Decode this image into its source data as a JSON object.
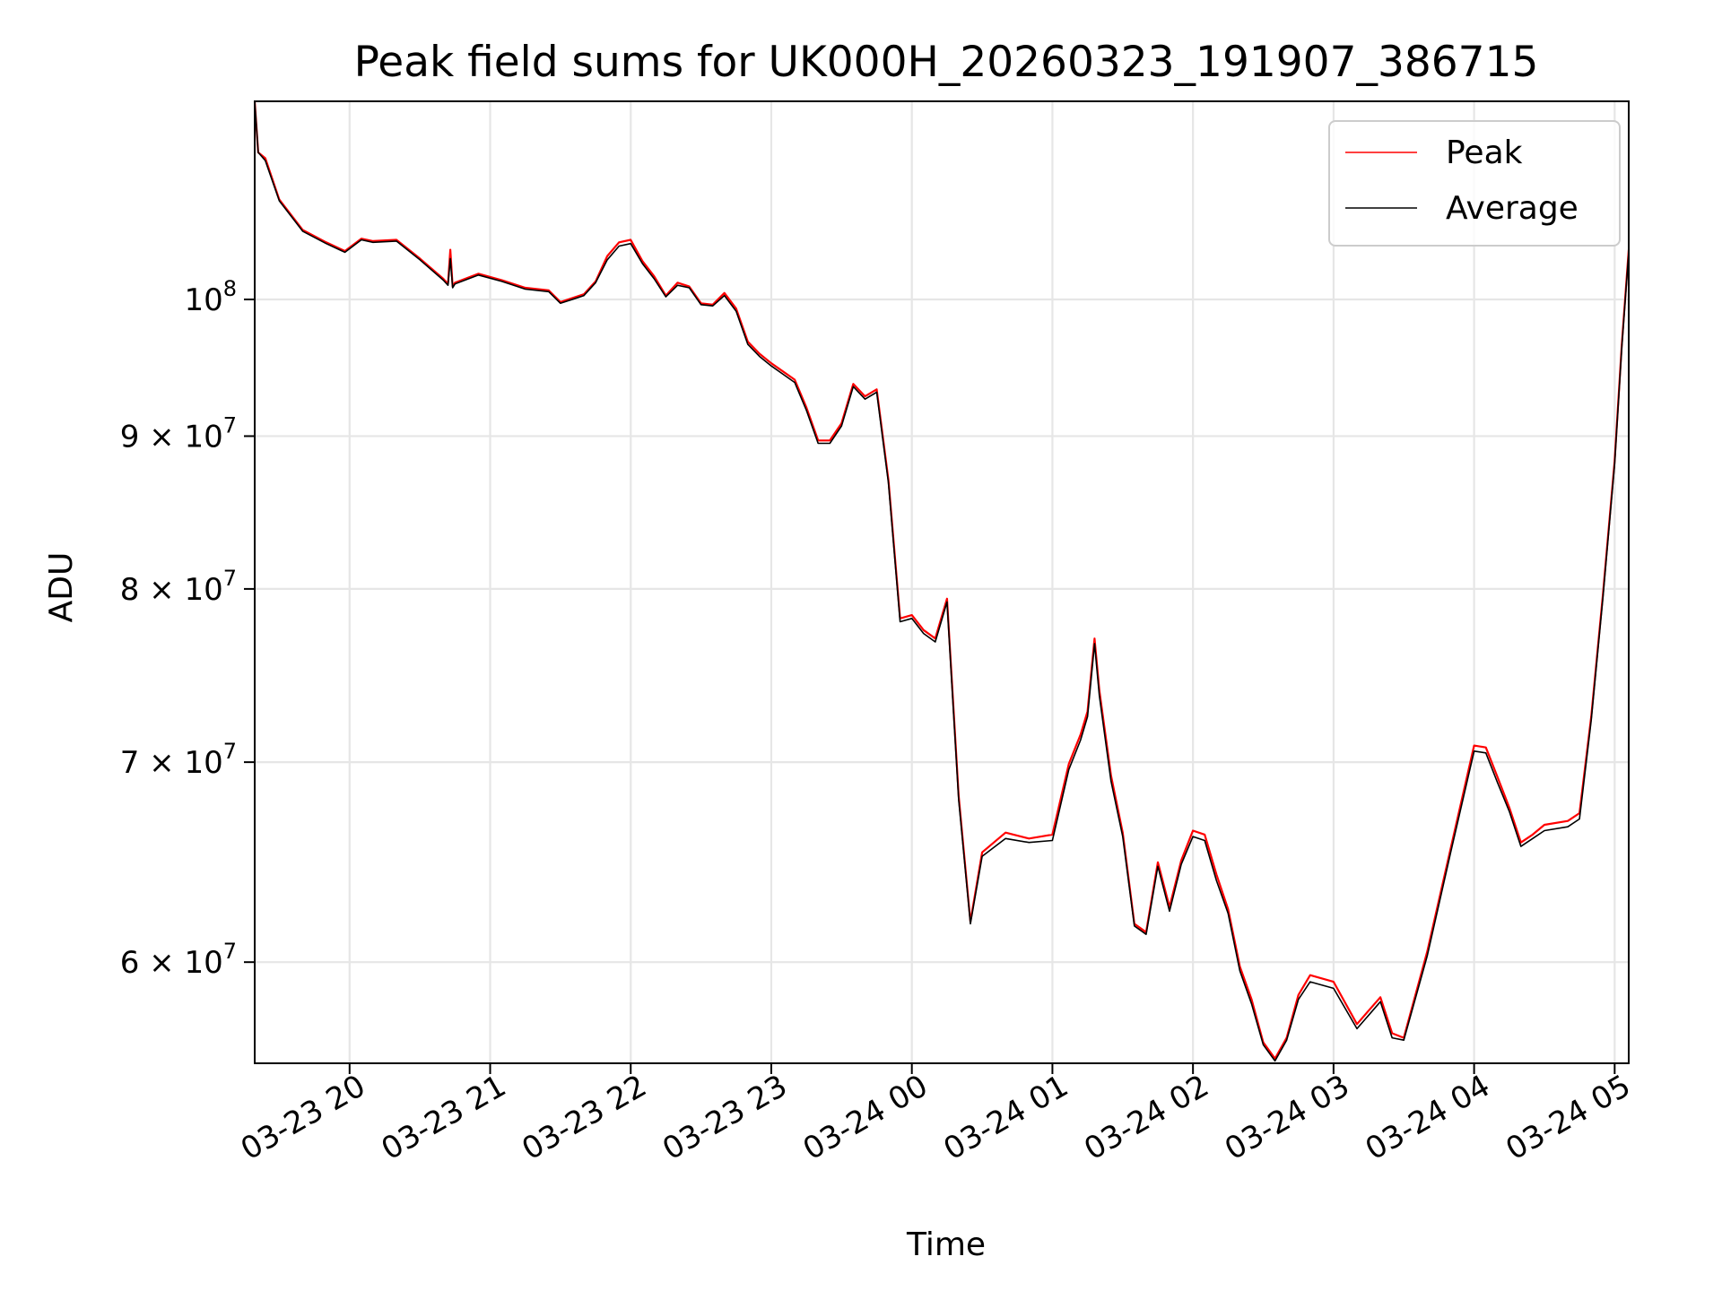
{
  "chart_data": {
    "type": "line",
    "title": "Peak field sums for UK000H_20260323_191907_386715",
    "xlabel": "Time",
    "ylabel": "ADU",
    "yscale": "log",
    "ylim": [
      55500000,
      116500000
    ],
    "xlim": [
      "2026-03-23T19:19:30",
      "2026-03-24T05:06:00"
    ],
    "grid": true,
    "legend_position": "upper right",
    "x_ticks": [
      {
        "value": "2026-03-23T20:00",
        "label": "03-23 20"
      },
      {
        "value": "2026-03-23T21:00",
        "label": "03-23 21"
      },
      {
        "value": "2026-03-23T22:00",
        "label": "03-23 22"
      },
      {
        "value": "2026-03-23T23:00",
        "label": "03-23 23"
      },
      {
        "value": "2026-03-24T00:00",
        "label": "03-24 00"
      },
      {
        "value": "2026-03-24T01:00",
        "label": "03-24 01"
      },
      {
        "value": "2026-03-24T02:00",
        "label": "03-24 02"
      },
      {
        "value": "2026-03-24T03:00",
        "label": "03-24 03"
      },
      {
        "value": "2026-03-24T04:00",
        "label": "03-24 04"
      },
      {
        "value": "2026-03-24T05:00",
        "label": "03-24 05"
      }
    ],
    "y_ticks": [
      {
        "value": 60000000,
        "mantissa": "6",
        "exponent": "7"
      },
      {
        "value": 70000000,
        "mantissa": "7",
        "exponent": "7"
      },
      {
        "value": 80000000,
        "mantissa": "8",
        "exponent": "7"
      },
      {
        "value": 90000000,
        "mantissa": "9",
        "exponent": "7"
      },
      {
        "value": 100000000,
        "mantissa": "",
        "exponent": "8"
      }
    ],
    "y_tick_base": "10",
    "y_tick_times": "×",
    "series": [
      {
        "name": "Peak",
        "color": "#ff0000",
        "x": [
          "2026-03-23T19:19:30",
          "2026-03-23T19:21:00",
          "2026-03-23T19:24:00",
          "2026-03-23T19:30:00",
          "2026-03-23T19:40:00",
          "2026-03-23T19:50:00",
          "2026-03-23T19:58:00",
          "2026-03-23T20:05:00",
          "2026-03-23T20:10:00",
          "2026-03-23T20:20:00",
          "2026-03-23T20:30:00",
          "2026-03-23T20:40:00",
          "2026-03-23T20:42:00",
          "2026-03-23T20:43:00",
          "2026-03-23T20:44:00",
          "2026-03-23T20:45:00",
          "2026-03-23T20:55:00",
          "2026-03-23T21:05:00",
          "2026-03-23T21:15:00",
          "2026-03-23T21:25:00",
          "2026-03-23T21:30:00",
          "2026-03-23T21:40:00",
          "2026-03-23T21:45:00",
          "2026-03-23T21:50:00",
          "2026-03-23T21:55:00",
          "2026-03-23T22:00:00",
          "2026-03-23T22:05:00",
          "2026-03-23T22:10:00",
          "2026-03-23T22:15:00",
          "2026-03-23T22:20:00",
          "2026-03-23T22:25:00",
          "2026-03-23T22:30:00",
          "2026-03-23T22:35:00",
          "2026-03-23T22:40:00",
          "2026-03-23T22:45:00",
          "2026-03-23T22:50:00",
          "2026-03-23T22:55:00",
          "2026-03-23T23:00:00",
          "2026-03-23T23:05:00",
          "2026-03-23T23:10:00",
          "2026-03-23T23:15:00",
          "2026-03-23T23:20:00",
          "2026-03-23T23:25:00",
          "2026-03-23T23:30:00",
          "2026-03-23T23:35:00",
          "2026-03-23T23:40:00",
          "2026-03-23T23:45:00",
          "2026-03-23T23:50:00",
          "2026-03-23T23:55:00",
          "2026-03-24T00:00:00",
          "2026-03-24T00:05:00",
          "2026-03-24T00:10:00",
          "2026-03-24T00:15:00",
          "2026-03-24T00:20:00",
          "2026-03-24T00:25:00",
          "2026-03-24T00:30:00",
          "2026-03-24T00:40:00",
          "2026-03-24T00:50:00",
          "2026-03-24T01:00:00",
          "2026-03-24T01:07:00",
          "2026-03-24T01:12:00",
          "2026-03-24T01:15:00",
          "2026-03-24T01:18:00",
          "2026-03-24T01:20:00",
          "2026-03-24T01:25:00",
          "2026-03-24T01:30:00",
          "2026-03-24T01:35:00",
          "2026-03-24T01:40:00",
          "2026-03-24T01:45:00",
          "2026-03-24T01:50:00",
          "2026-03-24T01:55:00",
          "2026-03-24T02:00:00",
          "2026-03-24T02:05:00",
          "2026-03-24T02:10:00",
          "2026-03-24T02:15:00",
          "2026-03-24T02:20:00",
          "2026-03-24T02:25:00",
          "2026-03-24T02:30:00",
          "2026-03-24T02:35:00",
          "2026-03-24T02:40:00",
          "2026-03-24T02:45:00",
          "2026-03-24T02:50:00",
          "2026-03-24T03:00:00",
          "2026-03-24T03:10:00",
          "2026-03-24T03:15:00",
          "2026-03-24T03:20:00",
          "2026-03-24T03:25:00",
          "2026-03-24T03:30:00",
          "2026-03-24T03:40:00",
          "2026-03-24T03:50:00",
          "2026-03-24T04:00:00",
          "2026-03-24T04:05:00",
          "2026-03-24T04:10:00",
          "2026-03-24T04:15:00",
          "2026-03-24T04:20:00",
          "2026-03-24T04:25:00",
          "2026-03-24T04:30:00",
          "2026-03-24T04:40:00",
          "2026-03-24T04:45:00",
          "2026-03-24T04:50:00",
          "2026-03-24T04:55:00",
          "2026-03-24T05:00:00",
          "2026-03-24T05:03:00",
          "2026-03-24T05:06:00"
        ],
        "values": [
          116500000,
          112000000,
          111500000,
          108000000,
          105500000,
          104500000,
          103800000,
          104800000,
          104600000,
          104700000,
          103200000,
          101600000,
          101200000,
          103900000,
          101000000,
          101300000,
          102000000,
          101500000,
          100900000,
          100700000,
          99800000,
          100400000,
          101400000,
          103400000,
          104500000,
          104700000,
          103000000,
          101800000,
          100300000,
          101300000,
          101000000,
          99700000,
          99600000,
          100500000,
          99300000,
          96800000,
          95900000,
          95200000,
          94600000,
          94000000,
          92000000,
          89700000,
          89700000,
          90900000,
          93700000,
          92800000,
          93300000,
          87000000,
          78200000,
          78400000,
          77500000,
          77000000,
          79400000,
          68200000,
          61900000,
          65300000,
          66300000,
          66000000,
          66200000,
          69900000,
          71500000,
          72800000,
          77000000,
          74000000,
          69300000,
          66300000,
          61800000,
          61400000,
          64800000,
          62600000,
          64900000,
          66400000,
          66200000,
          64200000,
          62500000,
          59800000,
          58300000,
          56400000,
          55700000,
          56600000,
          58500000,
          59400000,
          59100000,
          57200000,
          57800000,
          58400000,
          56800000,
          56600000,
          60500000,
          65500000,
          70900000,
          70800000,
          69200000,
          67600000,
          65800000,
          66200000,
          66700000,
          66900000,
          67300000,
          72500000,
          79700000,
          88300000,
          96500000,
          103900000
        ]
      },
      {
        "name": "Average",
        "color": "#000000",
        "x": [
          "2026-03-23T19:19:30",
          "2026-03-23T19:21:00",
          "2026-03-23T19:24:00",
          "2026-03-23T19:30:00",
          "2026-03-23T19:40:00",
          "2026-03-23T19:50:00",
          "2026-03-23T19:58:00",
          "2026-03-23T20:05:00",
          "2026-03-23T20:10:00",
          "2026-03-23T20:20:00",
          "2026-03-23T20:30:00",
          "2026-03-23T20:40:00",
          "2026-03-23T20:42:00",
          "2026-03-23T20:43:00",
          "2026-03-23T20:44:00",
          "2026-03-23T20:45:00",
          "2026-03-23T20:55:00",
          "2026-03-23T21:05:00",
          "2026-03-23T21:15:00",
          "2026-03-23T21:25:00",
          "2026-03-23T21:30:00",
          "2026-03-23T21:40:00",
          "2026-03-23T21:45:00",
          "2026-03-23T21:50:00",
          "2026-03-23T21:55:00",
          "2026-03-23T22:00:00",
          "2026-03-23T22:05:00",
          "2026-03-23T22:10:00",
          "2026-03-23T22:15:00",
          "2026-03-23T22:20:00",
          "2026-03-23T22:25:00",
          "2026-03-23T22:30:00",
          "2026-03-23T22:35:00",
          "2026-03-23T22:40:00",
          "2026-03-23T22:45:00",
          "2026-03-23T22:50:00",
          "2026-03-23T22:55:00",
          "2026-03-23T23:00:00",
          "2026-03-23T23:05:00",
          "2026-03-23T23:10:00",
          "2026-03-23T23:15:00",
          "2026-03-23T23:20:00",
          "2026-03-23T23:25:00",
          "2026-03-23T23:30:00",
          "2026-03-23T23:35:00",
          "2026-03-23T23:40:00",
          "2026-03-23T23:45:00",
          "2026-03-23T23:50:00",
          "2026-03-23T23:55:00",
          "2026-03-24T00:00:00",
          "2026-03-24T00:05:00",
          "2026-03-24T00:10:00",
          "2026-03-24T00:15:00",
          "2026-03-24T00:20:00",
          "2026-03-24T00:25:00",
          "2026-03-24T00:30:00",
          "2026-03-24T00:40:00",
          "2026-03-24T00:50:00",
          "2026-03-24T01:00:00",
          "2026-03-24T01:07:00",
          "2026-03-24T01:12:00",
          "2026-03-24T01:15:00",
          "2026-03-24T01:18:00",
          "2026-03-24T01:20:00",
          "2026-03-24T01:25:00",
          "2026-03-24T01:30:00",
          "2026-03-24T01:35:00",
          "2026-03-24T01:40:00",
          "2026-03-24T01:45:00",
          "2026-03-24T01:50:00",
          "2026-03-24T01:55:00",
          "2026-03-24T02:00:00",
          "2026-03-24T02:05:00",
          "2026-03-24T02:10:00",
          "2026-03-24T02:15:00",
          "2026-03-24T02:20:00",
          "2026-03-24T02:25:00",
          "2026-03-24T02:30:00",
          "2026-03-24T02:35:00",
          "2026-03-24T02:40:00",
          "2026-03-24T02:45:00",
          "2026-03-24T02:50:00",
          "2026-03-24T03:00:00",
          "2026-03-24T03:10:00",
          "2026-03-24T03:15:00",
          "2026-03-24T03:20:00",
          "2026-03-24T03:25:00",
          "2026-03-24T03:30:00",
          "2026-03-24T03:40:00",
          "2026-03-24T03:50:00",
          "2026-03-24T04:00:00",
          "2026-03-24T04:05:00",
          "2026-03-24T04:10:00",
          "2026-03-24T04:15:00",
          "2026-03-24T04:20:00",
          "2026-03-24T04:25:00",
          "2026-03-24T04:30:00",
          "2026-03-24T04:40:00",
          "2026-03-24T04:45:00",
          "2026-03-24T04:50:00",
          "2026-03-24T04:55:00",
          "2026-03-24T05:00:00",
          "2026-03-24T05:03:00",
          "2026-03-24T05:06:00"
        ],
        "values": [
          116500000,
          112000000,
          111300000,
          107900000,
          105400000,
          104400000,
          103700000,
          104700000,
          104500000,
          104600000,
          103100000,
          101500000,
          101100000,
          103200000,
          100900000,
          101200000,
          101900000,
          101400000,
          100800000,
          100600000,
          99700000,
          100300000,
          101300000,
          103100000,
          104200000,
          104400000,
          102800000,
          101600000,
          100200000,
          101100000,
          100900000,
          99600000,
          99500000,
          100300000,
          99100000,
          96600000,
          95700000,
          95000000,
          94400000,
          93800000,
          91800000,
          89500000,
          89500000,
          90700000,
          93500000,
          92600000,
          93100000,
          86800000,
          78000000,
          78200000,
          77300000,
          76800000,
          79200000,
          68000000,
          61800000,
          65100000,
          66000000,
          65800000,
          65900000,
          69600000,
          71200000,
          72500000,
          76700000,
          73700000,
          69000000,
          66100000,
          61700000,
          61300000,
          64600000,
          62400000,
          64700000,
          66100000,
          65900000,
          63900000,
          62300000,
          59600000,
          58100000,
          56300000,
          55600000,
          56500000,
          58300000,
          59100000,
          58800000,
          57000000,
          57600000,
          58200000,
          56600000,
          56500000,
          60300000,
          65300000,
          70600000,
          70500000,
          68900000,
          67400000,
          65600000,
          66000000,
          66400000,
          66600000,
          67000000,
          72300000,
          79500000,
          88100000,
          96300000,
          103700000
        ]
      }
    ]
  }
}
